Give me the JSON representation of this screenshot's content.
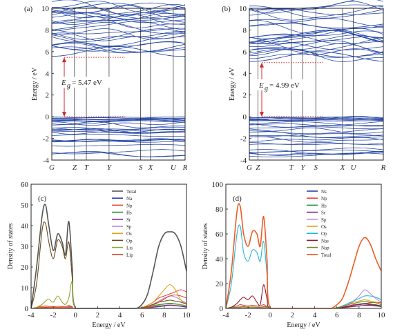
{
  "colors": {
    "band": "#2a4aa8",
    "axis": "#222222",
    "gap_arrow": "#d4262b",
    "total_c": "#555555",
    "na_s": "#2b3fb0",
    "na_p": "#e8403a",
    "h_s": "#1f8f3c",
    "sr_s": "#7f1f8e",
    "sp_total": "#b78cd6",
    "o_s": "#e0a51a",
    "o_p": "#28b4d4",
    "o_p_c": "#6a4a1a",
    "li_s": "#8aa82a",
    "li_p": "#d94b2c",
    "na_d": "#8b1d2c",
    "na_p_d": "#7e7f1f",
    "total_d": "#f05a22"
  },
  "chart_data": [
    {
      "panel": "(a)",
      "type": "line",
      "subtype": "band-structure",
      "ylabel": "Energy / eV",
      "ylim": [
        -4,
        10
      ],
      "yticks": [
        "-4",
        "-2",
        "0",
        "2",
        "4",
        "6",
        "8",
        "10"
      ],
      "kpoints": [
        "G",
        "Z",
        "T",
        "Y",
        "S",
        "X",
        "U",
        "R"
      ],
      "kpoint_positions": [
        0,
        0.23,
        0.35,
        0.58,
        0.9,
        1.0,
        1.23,
        1.35
      ],
      "gap_label": "E",
      "gap_sub": "g",
      "gap_value": "= 5.47 eV",
      "cbm": 5.47,
      "vbm": 0.0
    },
    {
      "panel": "(b)",
      "type": "line",
      "subtype": "band-structure",
      "ylabel": "Energy / eV",
      "ylim": [
        -4,
        10
      ],
      "yticks": [
        "-4",
        "-2",
        "0",
        "2",
        "4",
        "6",
        "8",
        "10"
      ],
      "kpoints": [
        "G",
        "Z",
        "T",
        "Y",
        "S",
        "X",
        "U",
        "R"
      ],
      "kpoint_positions": [
        0,
        0.08,
        0.39,
        0.5,
        0.62,
        0.87,
        0.97,
        1.25
      ],
      "gap_label": "E",
      "gap_sub": "g",
      "gap_value": "= 4.99 eV",
      "cbm": 4.99,
      "vbm": 0.0
    },
    {
      "panel": "(c)",
      "type": "line",
      "subtype": "density-of-states",
      "xlabel": "Energy / eV",
      "ylabel": "Density of states",
      "xlim": [
        -4,
        10
      ],
      "ylim": [
        0,
        60
      ],
      "xticks": [
        "-4",
        "-2",
        "0",
        "2",
        "4",
        "6",
        "8",
        "10"
      ],
      "yticks": [
        "0",
        "10",
        "20",
        "30",
        "40",
        "50",
        "60"
      ],
      "legend": [
        "Total",
        "Na",
        "Np",
        "Hs",
        "Sr",
        "Sp",
        "Os",
        "Op",
        "Lis",
        "Lip"
      ],
      "legend_colors": [
        "#555555",
        "#2b3fb0",
        "#e8403a",
        "#1f8f3c",
        "#7f1f8e",
        "#b78cd6",
        "#e0a51a",
        "#6a4a1a",
        "#8aa82a",
        "#d94b2c"
      ],
      "x": [
        -4,
        -3.5,
        -3,
        -2.7,
        -2.4,
        -2,
        -1.6,
        -1.2,
        -0.9,
        -0.6,
        -0.3,
        0,
        2,
        5,
        5.5,
        6,
        6.5,
        7,
        7.5,
        8,
        8.5,
        9,
        9.5,
        10
      ],
      "series": [
        {
          "name": "Total",
          "values": [
            0,
            20,
            45,
            50,
            40,
            28,
            36,
            32,
            26,
            42,
            20,
            0,
            0,
            0,
            0,
            2,
            7,
            18,
            30,
            36,
            37,
            36,
            30,
            18
          ]
        },
        {
          "name": "Na",
          "values": [
            0,
            0.2,
            0.5,
            0.6,
            0.5,
            0.4,
            0.5,
            0.4,
            0.4,
            0.8,
            0.5,
            0,
            0,
            0,
            0,
            0.2,
            0.4,
            0.6,
            0.8,
            1.2,
            1.5,
            1.3,
            1.0,
            0.6
          ]
        },
        {
          "name": "Np",
          "values": [
            0,
            0.5,
            1.0,
            1.2,
            1.0,
            0.8,
            1.0,
            0.9,
            0.8,
            1.5,
            0.8,
            0,
            0,
            0,
            0,
            0.5,
            1.5,
            3,
            5,
            6,
            7,
            8,
            9,
            8
          ]
        },
        {
          "name": "Hs",
          "values": [
            0,
            0.2,
            0.5,
            0.6,
            0.5,
            0.4,
            0.4,
            0.3,
            0.3,
            0.5,
            0.3,
            0,
            0,
            0,
            0,
            0.2,
            0.6,
            1.2,
            1.8,
            2.2,
            2.5,
            2.2,
            1.8,
            1.2
          ]
        },
        {
          "name": "Sr",
          "values": [
            0,
            0.1,
            0.2,
            0.3,
            0.2,
            0.2,
            0.2,
            0.2,
            0.2,
            0.3,
            0.2,
            0,
            0,
            0,
            0,
            0.1,
            0.3,
            0.6,
            1,
            1.4,
            1.6,
            1.4,
            1.2,
            0.8
          ]
        },
        {
          "name": "Sp",
          "values": [
            0,
            0.2,
            0.4,
            0.5,
            0.4,
            0.3,
            0.4,
            0.3,
            0.3,
            0.5,
            0.3,
            0,
            0,
            0,
            0,
            0.3,
            0.8,
            2,
            3.5,
            5,
            6,
            5.5,
            4,
            2.5
          ]
        },
        {
          "name": "Os",
          "values": [
            0,
            0.3,
            0.6,
            0.7,
            0.6,
            0.5,
            0.5,
            0.5,
            0.4,
            0.6,
            0.4,
            0,
            0,
            0,
            0,
            0.5,
            1.5,
            3,
            6,
            9,
            11.5,
            9,
            4,
            2
          ]
        },
        {
          "name": "Op",
          "values": [
            0,
            12,
            38,
            41,
            32,
            24,
            33,
            30,
            24,
            32,
            15,
            0,
            0,
            0,
            0,
            0.3,
            1,
            2,
            3,
            3.5,
            4,
            3.5,
            3,
            2
          ]
        },
        {
          "name": "Lis",
          "values": [
            0,
            0.5,
            2,
            3.5,
            4.5,
            3,
            6,
            3,
            2,
            5,
            13,
            0,
            0,
            0,
            0,
            0.2,
            0.5,
            1,
            1.5,
            2,
            2.2,
            2,
            1.8,
            1.2
          ]
        },
        {
          "name": "Lip",
          "values": [
            0,
            0.2,
            0.4,
            0.5,
            0.4,
            0.3,
            0.4,
            0.3,
            0.3,
            0.4,
            0.3,
            0,
            0,
            0,
            0,
            0.2,
            0.6,
            1.5,
            3,
            4.5,
            6,
            6.5,
            6,
            5
          ]
        }
      ]
    },
    {
      "panel": "(d)",
      "type": "line",
      "subtype": "density-of-states",
      "xlabel": "Energy / eV",
      "ylabel": "Density of states",
      "xlim": [
        -4,
        10
      ],
      "ylim": [
        0,
        100
      ],
      "xticks": [
        "-4",
        "-2",
        "0",
        "2",
        "4",
        "6",
        "8",
        "10"
      ],
      "yticks": [
        "0",
        "20",
        "40",
        "60",
        "80",
        "100"
      ],
      "legend": [
        "Ns",
        "Np",
        "Hs",
        "Sr",
        "Sp",
        "Os",
        "Op",
        "Nas",
        "Nap",
        "Total"
      ],
      "legend_colors": [
        "#2b3fb0",
        "#e8403a",
        "#1f8f3c",
        "#7f1f8e",
        "#b78cd6",
        "#e0a51a",
        "#28b4d4",
        "#8b1d2c",
        "#7e7f1f",
        "#f05a22"
      ],
      "x": [
        -4,
        -3.5,
        -3,
        -2.7,
        -2.4,
        -2,
        -1.6,
        -1.2,
        -0.9,
        -0.6,
        -0.3,
        0,
        2,
        5,
        5.5,
        6,
        6.5,
        7,
        7.5,
        8,
        8.5,
        9,
        9.5,
        10
      ],
      "series": [
        {
          "name": "Ns",
          "values": [
            0,
            0.3,
            0.6,
            0.8,
            0.6,
            0.5,
            0.6,
            0.5,
            0.5,
            0.8,
            0.5,
            0,
            0,
            0,
            0,
            0.3,
            0.8,
            1.5,
            2.5,
            3,
            3.5,
            3,
            2.5,
            1.5
          ]
        },
        {
          "name": "Np",
          "values": [
            0,
            1,
            2,
            3,
            2.5,
            2,
            2.5,
            2,
            1.8,
            3,
            1.5,
            0,
            0,
            0,
            0,
            0.5,
            1,
            2,
            3,
            3.5,
            4,
            4.5,
            5,
            4.5
          ]
        },
        {
          "name": "Hs",
          "values": [
            0,
            0.2,
            0.5,
            0.6,
            0.5,
            0.4,
            0.4,
            0.3,
            0.3,
            0.5,
            0.3,
            0,
            0,
            0,
            0,
            0.3,
            0.8,
            1.5,
            2.5,
            3.5,
            4,
            3.5,
            3,
            2
          ]
        },
        {
          "name": "Sr",
          "values": [
            0,
            0.2,
            0.4,
            0.5,
            0.4,
            0.3,
            0.3,
            0.3,
            0.3,
            0.4,
            0.3,
            0,
            0,
            0,
            0,
            0.3,
            0.8,
            1.5,
            2.5,
            3,
            3.5,
            3,
            2.5,
            2
          ]
        },
        {
          "name": "Sp",
          "values": [
            0,
            0.3,
            0.6,
            0.8,
            0.6,
            0.5,
            0.6,
            0.5,
            0.5,
            0.8,
            0.5,
            0,
            0,
            0,
            0,
            0.5,
            1.5,
            3,
            6,
            10,
            15,
            12,
            8,
            5
          ]
        },
        {
          "name": "Os",
          "values": [
            0,
            0.5,
            1,
            1.2,
            1,
            0.8,
            1,
            0.8,
            0.8,
            1.2,
            0.8,
            0,
            0,
            0,
            0,
            0.5,
            1.5,
            3,
            5,
            6,
            7,
            6,
            5,
            3
          ]
        },
        {
          "name": "Op",
          "values": [
            0,
            20,
            60,
            66,
            45,
            38,
            47,
            45,
            38,
            54,
            28,
            0,
            0,
            0,
            0,
            0.5,
            2,
            4,
            6,
            8,
            10,
            10,
            9,
            7
          ]
        },
        {
          "name": "Nas",
          "values": [
            0,
            1,
            4,
            7,
            9,
            7,
            10,
            5,
            3,
            19,
            8,
            0,
            0,
            0,
            0,
            0.3,
            0.6,
            1,
            1.5,
            2,
            2.5,
            2.5,
            2,
            1.5
          ]
        },
        {
          "name": "Nap",
          "values": [
            0,
            0.5,
            1,
            1.2,
            1.5,
            1,
            1.2,
            1,
            0.8,
            1.5,
            1,
            0,
            0,
            0,
            0,
            0.5,
            1.5,
            3,
            4,
            5,
            5.5,
            5,
            4.5,
            3
          ]
        },
        {
          "name": "Total",
          "values": [
            0,
            30,
            78,
            82,
            60,
            50,
            62,
            60,
            50,
            74,
            40,
            0,
            0,
            0,
            0,
            3,
            8,
            20,
            35,
            50,
            57,
            52,
            40,
            30
          ]
        }
      ]
    }
  ]
}
